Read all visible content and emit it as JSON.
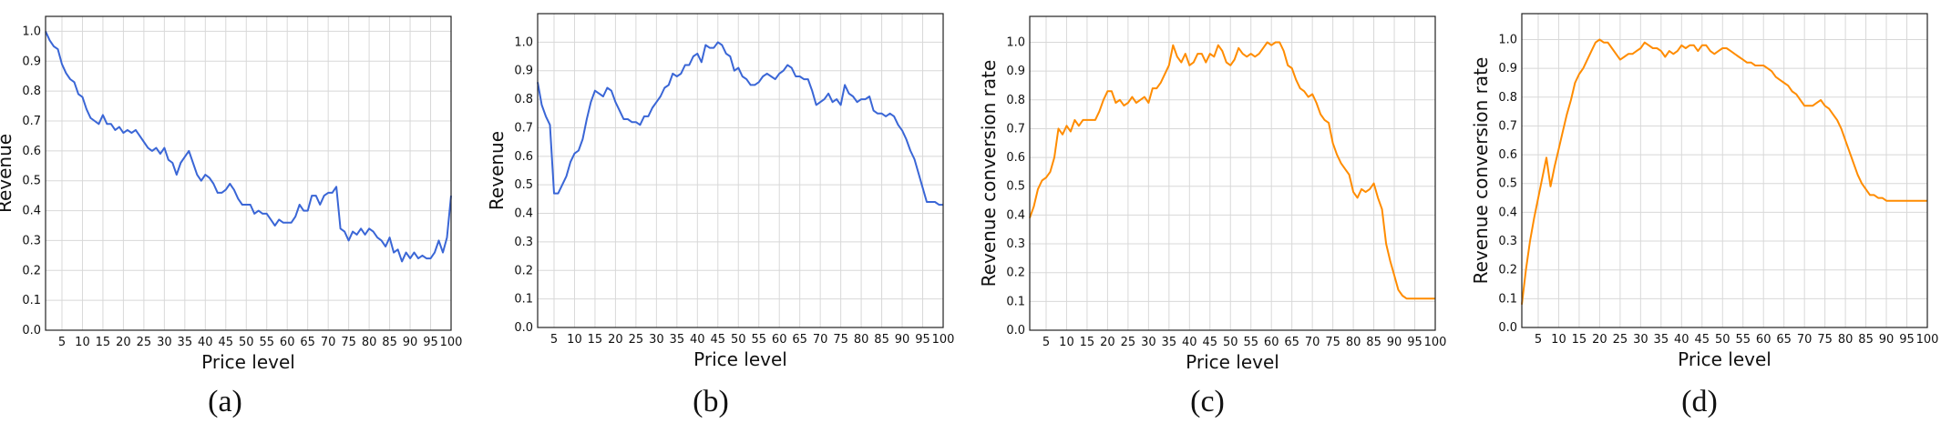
{
  "chart_data": [
    {
      "type": "line",
      "caption": "(a)",
      "xlabel": "Price level",
      "ylabel": "Revenue",
      "xlim": [
        1,
        100
      ],
      "ylim": [
        0,
        1.05
      ],
      "xticks": [
        5,
        10,
        15,
        20,
        25,
        30,
        35,
        40,
        45,
        50,
        55,
        60,
        65,
        70,
        75,
        80,
        85,
        90,
        95,
        100
      ],
      "yticks": [
        0.0,
        0.1,
        0.2,
        0.3,
        0.4,
        0.5,
        0.6,
        0.7,
        0.8,
        0.9,
        1.0
      ],
      "grid": true,
      "color": "#3a66d6",
      "x": [
        1,
        2,
        3,
        4,
        5,
        6,
        7,
        8,
        9,
        10,
        11,
        12,
        13,
        14,
        15,
        16,
        17,
        18,
        19,
        20,
        21,
        22,
        23,
        24,
        25,
        26,
        27,
        28,
        29,
        30,
        31,
        32,
        33,
        34,
        35,
        36,
        37,
        38,
        39,
        40,
        41,
        42,
        43,
        44,
        45,
        46,
        47,
        48,
        49,
        50,
        51,
        52,
        53,
        54,
        55,
        56,
        57,
        58,
        59,
        60,
        61,
        62,
        63,
        64,
        65,
        66,
        67,
        68,
        69,
        70,
        71,
        72,
        73,
        74,
        75,
        76,
        77,
        78,
        79,
        80,
        81,
        82,
        83,
        84,
        85,
        86,
        87,
        88,
        89,
        90,
        91,
        92,
        93,
        94,
        95,
        96,
        97,
        98,
        99,
        100
      ],
      "y": [
        1.0,
        0.97,
        0.95,
        0.94,
        0.89,
        0.86,
        0.84,
        0.83,
        0.79,
        0.78,
        0.74,
        0.71,
        0.7,
        0.69,
        0.72,
        0.69,
        0.69,
        0.67,
        0.68,
        0.66,
        0.67,
        0.66,
        0.67,
        0.65,
        0.63,
        0.61,
        0.6,
        0.61,
        0.59,
        0.61,
        0.57,
        0.56,
        0.52,
        0.56,
        0.58,
        0.6,
        0.56,
        0.52,
        0.5,
        0.52,
        0.51,
        0.49,
        0.46,
        0.46,
        0.47,
        0.49,
        0.47,
        0.44,
        0.42,
        0.42,
        0.42,
        0.39,
        0.4,
        0.39,
        0.39,
        0.37,
        0.35,
        0.37,
        0.36,
        0.36,
        0.36,
        0.38,
        0.42,
        0.4,
        0.4,
        0.45,
        0.45,
        0.42,
        0.45,
        0.46,
        0.46,
        0.48,
        0.34,
        0.33,
        0.3,
        0.33,
        0.32,
        0.34,
        0.32,
        0.34,
        0.33,
        0.31,
        0.3,
        0.28,
        0.31,
        0.26,
        0.27,
        0.23,
        0.26,
        0.24,
        0.26,
        0.24,
        0.25,
        0.24,
        0.24,
        0.26,
        0.3,
        0.26,
        0.31,
        0.45
      ]
    },
    {
      "type": "line",
      "caption": "(b)",
      "xlabel": "Price level",
      "ylabel": "Revenue",
      "xlim": [
        1,
        100
      ],
      "ylim": [
        0,
        1.1
      ],
      "xticks": [
        5,
        10,
        15,
        20,
        25,
        30,
        35,
        40,
        45,
        50,
        55,
        60,
        65,
        70,
        75,
        80,
        85,
        90,
        95,
        100
      ],
      "yticks": [
        0.0,
        0.1,
        0.2,
        0.3,
        0.4,
        0.5,
        0.6,
        0.7,
        0.8,
        0.9,
        1.0
      ],
      "grid": true,
      "color": "#3a66d6",
      "x": [
        1,
        2,
        3,
        4,
        5,
        6,
        7,
        8,
        9,
        10,
        11,
        12,
        13,
        14,
        15,
        16,
        17,
        18,
        19,
        20,
        21,
        22,
        23,
        24,
        25,
        26,
        27,
        28,
        29,
        30,
        31,
        32,
        33,
        34,
        35,
        36,
        37,
        38,
        39,
        40,
        41,
        42,
        43,
        44,
        45,
        46,
        47,
        48,
        49,
        50,
        51,
        52,
        53,
        54,
        55,
        56,
        57,
        58,
        59,
        60,
        61,
        62,
        63,
        64,
        65,
        66,
        67,
        68,
        69,
        70,
        71,
        72,
        73,
        74,
        75,
        76,
        77,
        78,
        79,
        80,
        81,
        82,
        83,
        84,
        85,
        86,
        87,
        88,
        89,
        90,
        91,
        92,
        93,
        94,
        95,
        96,
        97,
        98,
        99,
        100
      ],
      "y": [
        0.86,
        0.78,
        0.74,
        0.71,
        0.47,
        0.47,
        0.5,
        0.53,
        0.58,
        0.61,
        0.62,
        0.66,
        0.73,
        0.79,
        0.83,
        0.82,
        0.81,
        0.84,
        0.83,
        0.79,
        0.76,
        0.73,
        0.73,
        0.72,
        0.72,
        0.71,
        0.74,
        0.74,
        0.77,
        0.79,
        0.81,
        0.84,
        0.85,
        0.89,
        0.88,
        0.89,
        0.92,
        0.92,
        0.95,
        0.96,
        0.93,
        0.99,
        0.98,
        0.98,
        1.0,
        0.99,
        0.96,
        0.95,
        0.9,
        0.91,
        0.88,
        0.87,
        0.85,
        0.85,
        0.86,
        0.88,
        0.89,
        0.88,
        0.87,
        0.89,
        0.9,
        0.92,
        0.91,
        0.88,
        0.88,
        0.87,
        0.87,
        0.83,
        0.78,
        0.79,
        0.8,
        0.82,
        0.79,
        0.8,
        0.78,
        0.85,
        0.82,
        0.81,
        0.79,
        0.8,
        0.8,
        0.81,
        0.76,
        0.75,
        0.75,
        0.74,
        0.75,
        0.74,
        0.71,
        0.69,
        0.66,
        0.62,
        0.59,
        0.54,
        0.49,
        0.44,
        0.44,
        0.44,
        0.43,
        0.43
      ]
    },
    {
      "type": "line",
      "caption": "(c)",
      "xlabel": "Price level",
      "ylabel": "Revenue conversion rate",
      "xlim": [
        1,
        100
      ],
      "ylim": [
        0,
        1.09
      ],
      "xticks": [
        5,
        10,
        15,
        20,
        25,
        30,
        35,
        40,
        45,
        50,
        55,
        60,
        65,
        70,
        75,
        80,
        85,
        90,
        95,
        100
      ],
      "yticks": [
        0.0,
        0.1,
        0.2,
        0.3,
        0.4,
        0.5,
        0.6,
        0.7,
        0.8,
        0.9,
        1.0
      ],
      "grid": true,
      "color": "#ff8c00",
      "x": [
        1,
        2,
        3,
        4,
        5,
        6,
        7,
        8,
        9,
        10,
        11,
        12,
        13,
        14,
        15,
        16,
        17,
        18,
        19,
        20,
        21,
        22,
        23,
        24,
        25,
        26,
        27,
        28,
        29,
        30,
        31,
        32,
        33,
        34,
        35,
        36,
        37,
        38,
        39,
        40,
        41,
        42,
        43,
        44,
        45,
        46,
        47,
        48,
        49,
        50,
        51,
        52,
        53,
        54,
        55,
        56,
        57,
        58,
        59,
        60,
        61,
        62,
        63,
        64,
        65,
        66,
        67,
        68,
        69,
        70,
        71,
        72,
        73,
        74,
        75,
        76,
        77,
        78,
        79,
        80,
        81,
        82,
        83,
        84,
        85,
        86,
        87,
        88,
        89,
        90,
        91,
        92,
        93,
        94,
        95,
        96,
        97,
        98,
        99,
        100
      ],
      "y": [
        0.39,
        0.43,
        0.49,
        0.52,
        0.53,
        0.55,
        0.6,
        0.7,
        0.68,
        0.71,
        0.69,
        0.73,
        0.71,
        0.73,
        0.73,
        0.73,
        0.73,
        0.76,
        0.8,
        0.83,
        0.83,
        0.79,
        0.8,
        0.78,
        0.79,
        0.81,
        0.79,
        0.8,
        0.81,
        0.79,
        0.84,
        0.84,
        0.86,
        0.89,
        0.92,
        0.99,
        0.95,
        0.93,
        0.96,
        0.92,
        0.93,
        0.96,
        0.96,
        0.93,
        0.96,
        0.95,
        0.99,
        0.97,
        0.93,
        0.92,
        0.94,
        0.98,
        0.96,
        0.95,
        0.96,
        0.95,
        0.96,
        0.98,
        1.0,
        0.99,
        1.0,
        1.0,
        0.97,
        0.92,
        0.91,
        0.87,
        0.84,
        0.83,
        0.81,
        0.82,
        0.79,
        0.75,
        0.73,
        0.72,
        0.65,
        0.61,
        0.58,
        0.56,
        0.54,
        0.48,
        0.46,
        0.49,
        0.48,
        0.49,
        0.51,
        0.46,
        0.42,
        0.3,
        0.24,
        0.19,
        0.14,
        0.12,
        0.11,
        0.11,
        0.11,
        0.11,
        0.11,
        0.11,
        0.11,
        0.11
      ]
    },
    {
      "type": "line",
      "caption": "(d)",
      "xlabel": "Price level",
      "ylabel": "Revenue conversion rate",
      "xlim": [
        1,
        100
      ],
      "ylim": [
        0,
        1.09
      ],
      "xticks": [
        5,
        10,
        15,
        20,
        25,
        30,
        35,
        40,
        45,
        50,
        55,
        60,
        65,
        70,
        75,
        80,
        85,
        90,
        95,
        100
      ],
      "yticks": [
        0.0,
        0.1,
        0.2,
        0.3,
        0.4,
        0.5,
        0.6,
        0.7,
        0.8,
        0.9,
        1.0
      ],
      "grid": true,
      "color": "#ff8c00",
      "x": [
        1,
        2,
        3,
        4,
        5,
        6,
        7,
        8,
        9,
        10,
        11,
        12,
        13,
        14,
        15,
        16,
        17,
        18,
        19,
        20,
        21,
        22,
        23,
        24,
        25,
        26,
        27,
        28,
        29,
        30,
        31,
        32,
        33,
        34,
        35,
        36,
        37,
        38,
        39,
        40,
        41,
        42,
        43,
        44,
        45,
        46,
        47,
        48,
        49,
        50,
        51,
        52,
        53,
        54,
        55,
        56,
        57,
        58,
        59,
        60,
        61,
        62,
        63,
        64,
        65,
        66,
        67,
        68,
        69,
        70,
        71,
        72,
        73,
        74,
        75,
        76,
        77,
        78,
        79,
        80,
        81,
        82,
        83,
        84,
        85,
        86,
        87,
        88,
        89,
        90,
        91,
        92,
        93,
        94,
        95,
        96,
        97,
        98,
        99,
        100
      ],
      "y": [
        0.08,
        0.2,
        0.3,
        0.38,
        0.45,
        0.52,
        0.59,
        0.49,
        0.56,
        0.62,
        0.68,
        0.74,
        0.79,
        0.85,
        0.88,
        0.9,
        0.93,
        0.96,
        0.99,
        1.0,
        0.99,
        0.99,
        0.97,
        0.95,
        0.93,
        0.94,
        0.95,
        0.95,
        0.96,
        0.97,
        0.99,
        0.98,
        0.97,
        0.97,
        0.96,
        0.94,
        0.96,
        0.95,
        0.96,
        0.98,
        0.97,
        0.98,
        0.98,
        0.96,
        0.98,
        0.98,
        0.96,
        0.95,
        0.96,
        0.97,
        0.97,
        0.96,
        0.95,
        0.94,
        0.93,
        0.92,
        0.92,
        0.91,
        0.91,
        0.91,
        0.9,
        0.89,
        0.87,
        0.86,
        0.85,
        0.84,
        0.82,
        0.81,
        0.79,
        0.77,
        0.77,
        0.77,
        0.78,
        0.79,
        0.77,
        0.76,
        0.74,
        0.72,
        0.69,
        0.65,
        0.61,
        0.57,
        0.53,
        0.5,
        0.48,
        0.46,
        0.46,
        0.45,
        0.45,
        0.44,
        0.44,
        0.44,
        0.44,
        0.44,
        0.44,
        0.44,
        0.44,
        0.44,
        0.44,
        0.44
      ]
    }
  ]
}
